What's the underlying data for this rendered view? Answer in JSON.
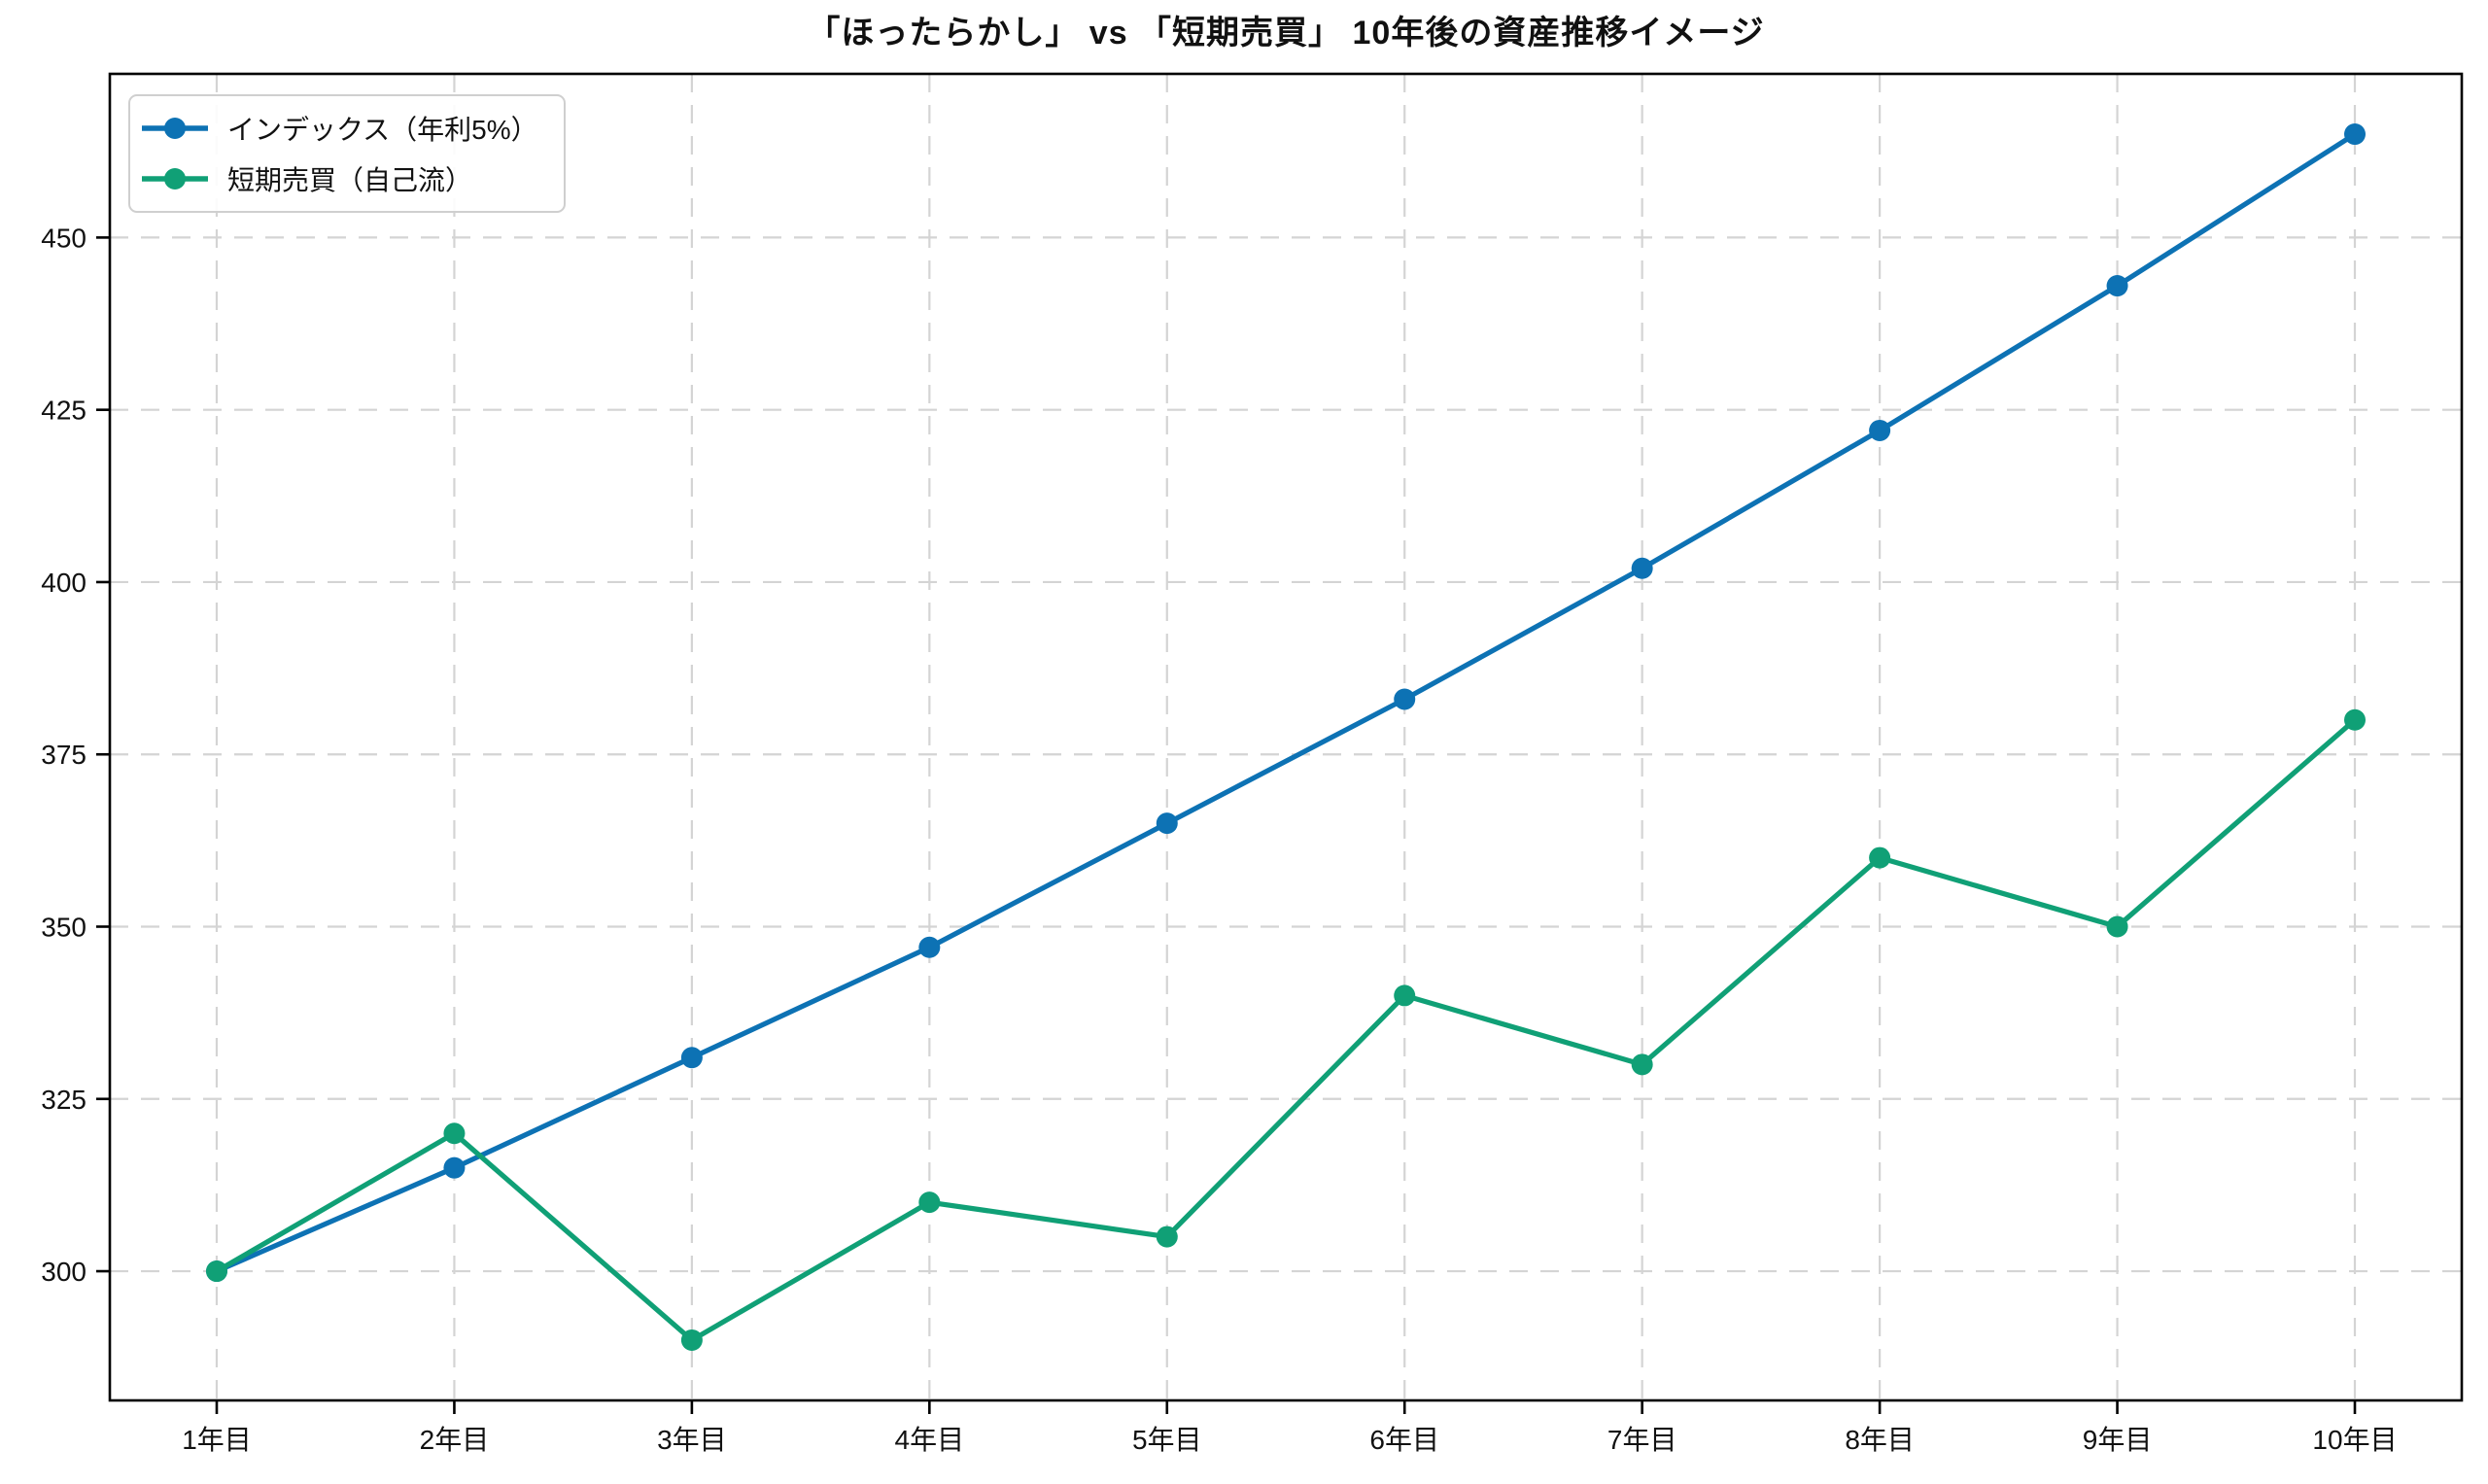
{
  "chart_data": {
    "type": "line",
    "title": "「ほったらかし」 vs 「短期売買」 10年後の資産推移イメージ",
    "x": [
      1,
      2,
      3,
      4,
      5,
      6,
      7,
      8,
      9,
      10
    ],
    "x_tick_labels": [
      "1年目",
      "2年目",
      "3年目",
      "4年目",
      "5年目",
      "6年目",
      "7年目",
      "8年目",
      "9年目",
      "10年目"
    ],
    "y_ticks": [
      300,
      325,
      350,
      375,
      400,
      425,
      450
    ],
    "y_tick_labels": [
      "300",
      "325",
      "350",
      "375",
      "400",
      "425",
      "450"
    ],
    "xlim": [
      0.55,
      10.45
    ],
    "ylim": [
      281.25,
      473.75
    ],
    "grid": "on",
    "grid_style": "dashed",
    "legend_position": "upper left",
    "series": [
      {
        "name": "インデックス（年利5%）",
        "color": "#0d72b4",
        "marker": "circle",
        "values": [
          300,
          315,
          331,
          347,
          365,
          383,
          402,
          422,
          443,
          465
        ]
      },
      {
        "name": "短期売買（自己流）",
        "color": "#10a076",
        "marker": "circle",
        "values": [
          300,
          320,
          290,
          310,
          305,
          340,
          330,
          360,
          350,
          380
        ]
      }
    ]
  },
  "style_colors": {
    "grid": "#d4d4d4",
    "axis": "#000000",
    "text": "#111111",
    "legend_border": "#cfcfcf"
  }
}
